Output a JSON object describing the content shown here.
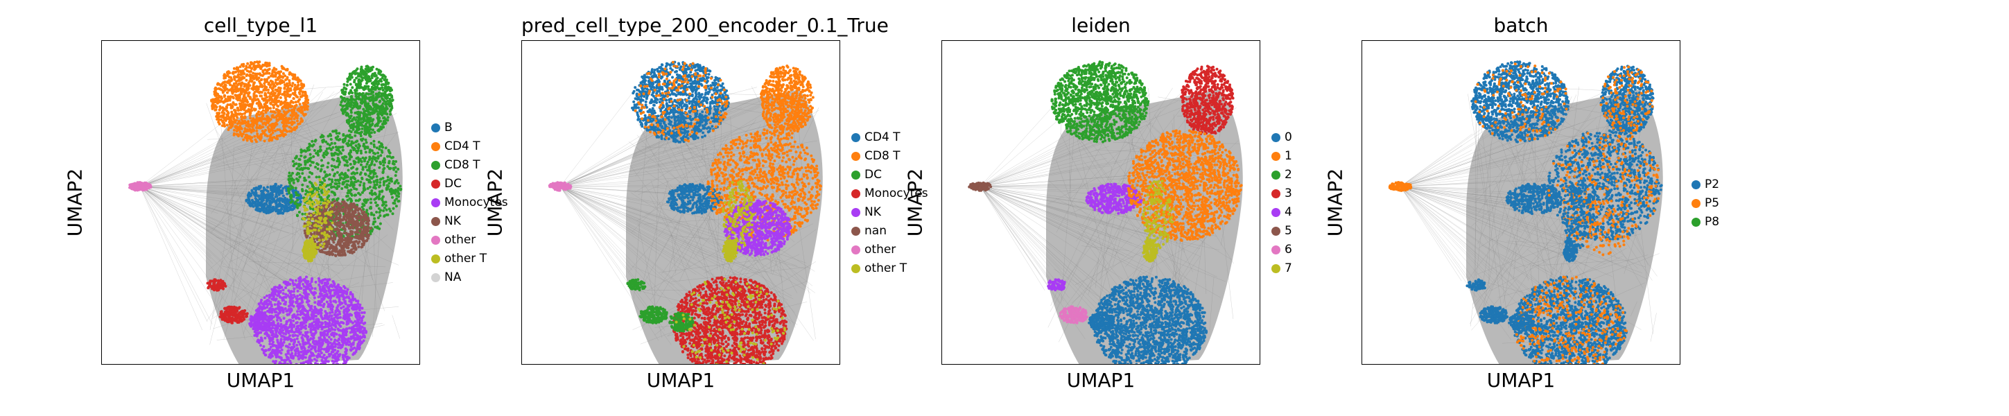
{
  "chart_data": [
    {
      "type": "scatter",
      "title": "cell_type_l1",
      "xlabel": "UMAP1",
      "ylabel": "UMAP2",
      "legend_position": "right",
      "series": [
        {
          "name": "B",
          "color": "#1f77b4"
        },
        {
          "name": "CD4 T",
          "color": "#ff7f0e"
        },
        {
          "name": "CD8 T",
          "color": "#2ca02c"
        },
        {
          "name": "DC",
          "color": "#d62728"
        },
        {
          "name": "Monocytes",
          "color": "#a83cf4"
        },
        {
          "name": "NK",
          "color": "#8c564b"
        },
        {
          "name": "other",
          "color": "#e377c2"
        },
        {
          "name": "other T",
          "color": "#bcbd22"
        },
        {
          "name": "NA",
          "color": "#d3d3d3"
        }
      ]
    },
    {
      "type": "scatter",
      "title": "pred_cell_type_200_encoder_0.1_True",
      "xlabel": "UMAP1",
      "ylabel": "UMAP2",
      "legend_position": "right",
      "series": [
        {
          "name": "CD4 T",
          "color": "#1f77b4"
        },
        {
          "name": "CD8 T",
          "color": "#ff7f0e"
        },
        {
          "name": "DC",
          "color": "#2ca02c"
        },
        {
          "name": "Monocytes",
          "color": "#d62728"
        },
        {
          "name": "NK",
          "color": "#a83cf4"
        },
        {
          "name": "nan",
          "color": "#8c564b"
        },
        {
          "name": "other",
          "color": "#e377c2"
        },
        {
          "name": "other T",
          "color": "#bcbd22"
        }
      ]
    },
    {
      "type": "scatter",
      "title": "leiden",
      "xlabel": "UMAP1",
      "ylabel": "UMAP2",
      "legend_position": "right",
      "series": [
        {
          "name": "0",
          "color": "#1f77b4"
        },
        {
          "name": "1",
          "color": "#ff7f0e"
        },
        {
          "name": "2",
          "color": "#2ca02c"
        },
        {
          "name": "3",
          "color": "#d62728"
        },
        {
          "name": "4",
          "color": "#a83cf4"
        },
        {
          "name": "5",
          "color": "#8c564b"
        },
        {
          "name": "6",
          "color": "#e377c2"
        },
        {
          "name": "7",
          "color": "#bcbd22"
        }
      ]
    },
    {
      "type": "scatter",
      "title": "batch",
      "xlabel": "UMAP1",
      "ylabel": "UMAP2",
      "legend_position": "right",
      "series": [
        {
          "name": "P2",
          "color": "#1f77b4"
        },
        {
          "name": "P5",
          "color": "#ff7f0e"
        },
        {
          "name": "P8",
          "color": "#2ca02c"
        }
      ]
    }
  ],
  "edge_color": "#808080"
}
